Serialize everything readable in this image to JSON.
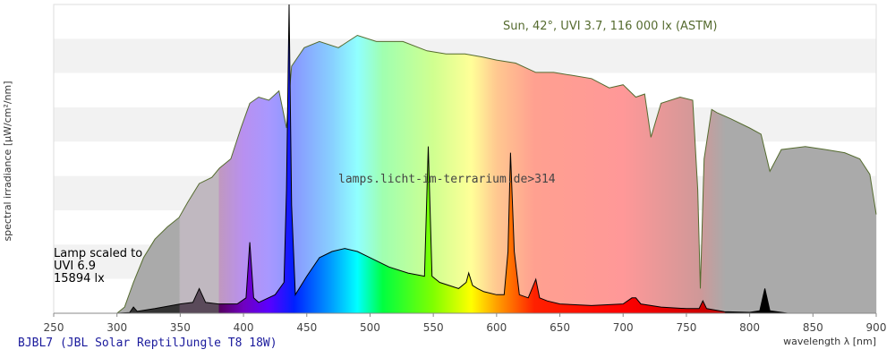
{
  "chart_data": {
    "type": "area",
    "xlabel": "wavelength λ [nm]",
    "ylabel": "spectral irradiance [µW/cm²/nm]",
    "xlim": [
      250,
      900
    ],
    "x_ticks": [
      250,
      300,
      350,
      400,
      450,
      500,
      550,
      600,
      650,
      700,
      750,
      800,
      850,
      900
    ],
    "grid": "horizontal bands",
    "annotations": {
      "sun_title": "Sun, 42°, UVI 3.7, 116 000 lx (ASTM)",
      "lamp_note": [
        "Lamp scaled to",
        "UVI 6.9",
        "15894 lx"
      ],
      "watermark": "lamps.licht-im-terrarium.de>314"
    },
    "footer": "BJBL7 (JBL Solar ReptilJungle T8 18W)",
    "series": [
      {
        "key": "sun",
        "color": "#556b2f",
        "x": [
          300,
          306,
          313,
          321,
          330,
          340,
          349,
          356,
          365,
          375,
          381,
          390,
          398,
          405,
          412,
          420,
          428,
          434,
          438,
          448,
          460,
          475,
          490,
          505,
          526,
          545,
          560,
          575,
          589,
          600,
          615,
          631,
          645,
          660,
          675,
          689,
          700,
          710,
          717,
          722,
          730,
          745,
          755,
          759,
          761,
          764,
          770,
          774,
          785,
          800,
          809,
          816,
          825,
          844,
          860,
          875,
          887,
          895,
          900
        ],
        "y": [
          0.0,
          0.02,
          0.1,
          0.18,
          0.24,
          0.28,
          0.31,
          0.36,
          0.42,
          0.44,
          0.47,
          0.5,
          0.6,
          0.68,
          0.7,
          0.69,
          0.72,
          0.6,
          0.8,
          0.86,
          0.88,
          0.86,
          0.9,
          0.88,
          0.88,
          0.85,
          0.84,
          0.84,
          0.83,
          0.82,
          0.81,
          0.78,
          0.78,
          0.77,
          0.76,
          0.73,
          0.74,
          0.7,
          0.71,
          0.57,
          0.68,
          0.7,
          0.69,
          0.4,
          0.08,
          0.5,
          0.66,
          0.65,
          0.63,
          0.6,
          0.58,
          0.46,
          0.53,
          0.54,
          0.53,
          0.52,
          0.5,
          0.45,
          0.32
        ]
      },
      {
        "key": "lamp",
        "color": "#000000",
        "x": [
          250,
          300,
          310,
          313,
          316,
          330,
          350,
          360,
          365,
          370,
          380,
          395,
          402,
          405,
          408,
          412,
          425,
          432,
          434,
          436,
          438,
          441,
          450,
          460,
          470,
          480,
          490,
          500,
          515,
          530,
          543,
          546,
          549,
          555,
          570,
          576,
          578,
          581,
          585,
          590,
          600,
          606,
          609,
          611,
          614,
          618,
          625,
          631,
          634,
          640,
          650,
          675,
          700,
          707,
          710,
          714,
          730,
          750,
          760,
          763,
          766,
          780,
          800,
          808,
          812,
          816,
          830
        ],
        "y": [
          0.0,
          0.0,
          0.002,
          0.02,
          0.006,
          0.015,
          0.03,
          0.035,
          0.08,
          0.035,
          0.03,
          0.03,
          0.05,
          0.23,
          0.05,
          0.035,
          0.06,
          0.1,
          0.4,
          1.0,
          0.35,
          0.06,
          0.12,
          0.18,
          0.2,
          0.21,
          0.2,
          0.18,
          0.15,
          0.13,
          0.12,
          0.54,
          0.12,
          0.1,
          0.08,
          0.1,
          0.13,
          0.09,
          0.08,
          0.07,
          0.06,
          0.06,
          0.2,
          0.52,
          0.2,
          0.06,
          0.05,
          0.11,
          0.05,
          0.04,
          0.03,
          0.025,
          0.03,
          0.05,
          0.05,
          0.03,
          0.02,
          0.015,
          0.015,
          0.04,
          0.015,
          0.005,
          0.003,
          0.008,
          0.08,
          0.008,
          0.0
        ]
      }
    ]
  }
}
